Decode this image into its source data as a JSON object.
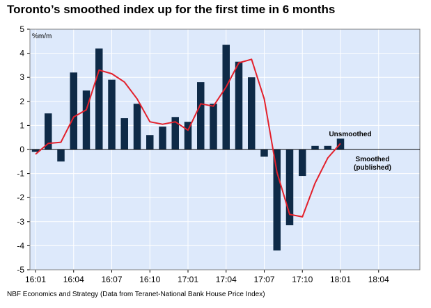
{
  "chart_data": {
    "type": "bar",
    "title": "Toronto’s smoothed index up for the first time in 6 months",
    "source": "NBF Economics and Strategy (Data from Teranet-National Bank House Price Index)",
    "ylabel": "%m/m",
    "xlabel": "",
    "ylim": [
      -5,
      5
    ],
    "yticks": [
      "5",
      "4",
      "3",
      "2",
      "1",
      "0",
      "-1",
      "-2",
      "-3",
      "-4",
      "-5"
    ],
    "xtick_labels": [
      "16:01",
      "16:04",
      "16:07",
      "16:10",
      "17:01",
      "17:04",
      "17:07",
      "17:10",
      "18:01",
      "18:04"
    ],
    "grid": true,
    "colors": {
      "plot_bg": "#dde9fb",
      "grid": "#ffffff",
      "bars": "#0e2a47",
      "line": "#e3202b",
      "zero_line": "#000000"
    },
    "categories": [
      "16:01",
      "16:02",
      "16:03",
      "16:04",
      "16:05",
      "16:06",
      "16:07",
      "16:08",
      "16:09",
      "16:10",
      "16:11",
      "16:12",
      "17:01",
      "17:02",
      "17:03",
      "17:04",
      "17:05",
      "17:06",
      "17:07",
      "17:08",
      "17:09",
      "17:10",
      "17:11",
      "17:12",
      "18:01"
    ],
    "series": [
      {
        "name": "Unsmoothed",
        "values": [
          -0.1,
          1.5,
          -0.5,
          3.2,
          2.45,
          4.2,
          2.9,
          1.3,
          1.9,
          0.6,
          0.95,
          1.35,
          1.15,
          2.8,
          1.9,
          4.35,
          3.65,
          3.0,
          -0.3,
          -4.2,
          -3.15,
          -1.1,
          0.15,
          0.15,
          0.45
        ]
      },
      {
        "name": "Smoothed (published)",
        "name_lines": [
          "Smoothed",
          "(published)"
        ],
        "values": [
          -0.2,
          0.25,
          0.3,
          1.35,
          1.65,
          3.3,
          3.15,
          2.8,
          2.1,
          1.15,
          1.05,
          1.15,
          0.8,
          1.9,
          1.8,
          2.6,
          3.6,
          3.75,
          2.1,
          -0.95,
          -2.7,
          -2.8,
          -1.4,
          -0.35,
          0.25
        ]
      }
    ]
  }
}
